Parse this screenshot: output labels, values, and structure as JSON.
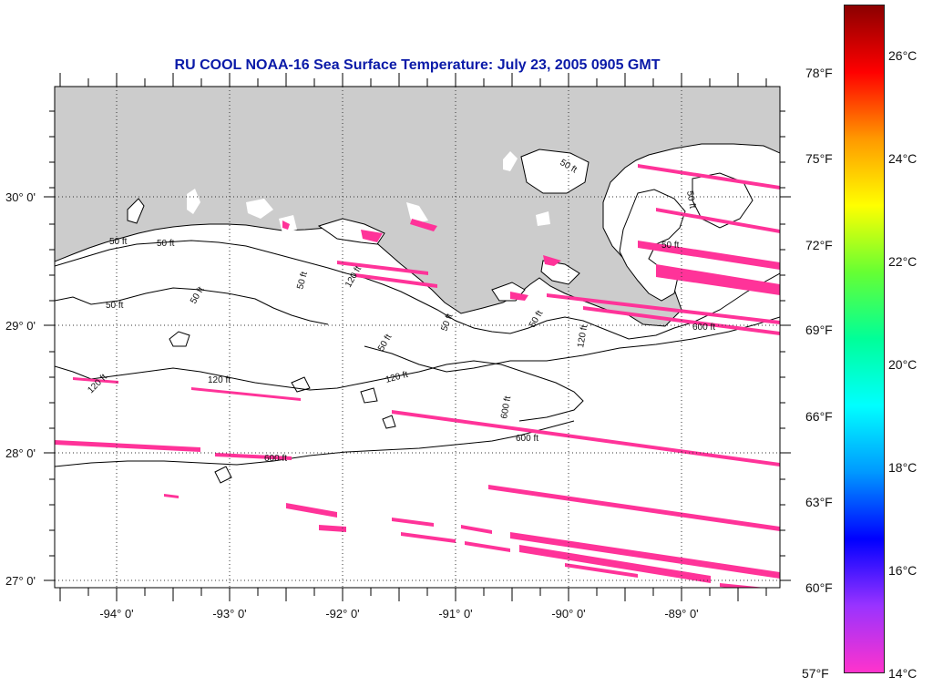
{
  "title": "RU COOL  NOAA-16  Sea Surface Temperature:  July 23, 2005 0905 GMT",
  "latitude_labels": [
    "30° 0'",
    "29° 0'",
    "28° 0'",
    "27° 0'"
  ],
  "longitude_labels": [
    "-94° 0'",
    "-93° 0'",
    "-92° 0'",
    "-91° 0'",
    "-90° 0'",
    "-89° 0'"
  ],
  "contour_labels": {
    "c50": "50 ft",
    "c120": "120 ft",
    "c600": "600 ft",
    "c50_rot": "50 ft",
    "c120_rot": "120 ft",
    "c600_rot": "600 ft"
  },
  "colorbar": {
    "celsius_labels": [
      "26°C",
      "24°C",
      "22°C",
      "20°C",
      "18°C",
      "16°C",
      "14°C"
    ],
    "fahrenheit_labels": [
      "78°F",
      "75°F",
      "72°F",
      "69°F",
      "66°F",
      "63°F",
      "60°F",
      "57°F"
    ],
    "colors": [
      "#8b0000",
      "#ff0000",
      "#ff9900",
      "#ffff00",
      "#66ff33",
      "#00ff99",
      "#00ffff",
      "#0099ff",
      "#0000ff",
      "#9933ff",
      "#ff33cc"
    ]
  },
  "colors": {
    "land": "#cccccc",
    "water": "#ffffff",
    "sst_patch": "#ff3399",
    "title": "#0a1aa8"
  },
  "sst_observed_range": "14°C–15°C (57–59°F)"
}
